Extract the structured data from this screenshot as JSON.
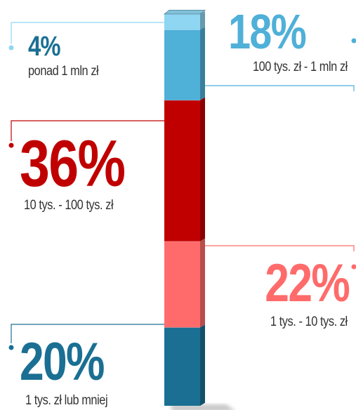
{
  "chart_data": {
    "type": "bar",
    "stacked": true,
    "orientation": "vertical",
    "unit": "%",
    "series": [
      {
        "value_label": "20%",
        "value": 20,
        "category": "1 tys. zł lub mniej",
        "color": "#1a6f93",
        "side": "left"
      },
      {
        "value_label": "22%",
        "value": 22,
        "category": "1 tys. - 10 tys. zł",
        "color": "#ff6b6b",
        "side": "right"
      },
      {
        "value_label": "36%",
        "value": 36,
        "category": "10 tys. - 100 tys. zł",
        "color": "#c00000",
        "side": "left"
      },
      {
        "value_label": "18%",
        "value": 18,
        "category": "100 tys. zł - 1 mln zł",
        "color": "#4fb0d8",
        "side": "right"
      },
      {
        "value_label": "4%",
        "value": 4,
        "category": "ponad 1 mln zł",
        "color": "#8fd6f2",
        "side": "left"
      }
    ]
  }
}
